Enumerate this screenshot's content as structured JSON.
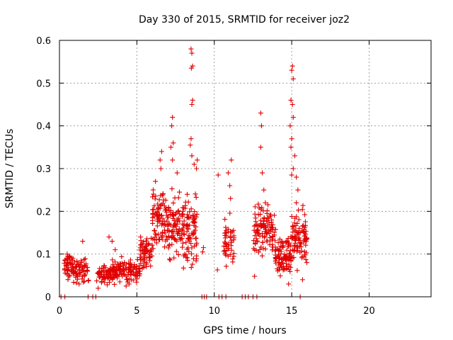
{
  "chart_data": {
    "type": "scatter",
    "title": "Day 330 of 2015, SRMTID for receiver joz2",
    "xlabel": "GPS time / hours",
    "ylabel": "SRMTID / TECUs",
    "xlim": [
      0,
      24
    ],
    "ylim": [
      0,
      0.6
    ],
    "xticks": [
      0,
      5,
      10,
      15,
      20
    ],
    "yticks": [
      0,
      0.1,
      0.2,
      0.3,
      0.4,
      0.5,
      0.6
    ],
    "xtick_labels": [
      "0",
      "5",
      "10",
      "15",
      "20"
    ],
    "ytick_labels": [
      "0",
      "0.1",
      "0.2",
      "0.3",
      "0.4",
      "0.5",
      "0.6"
    ],
    "grid": true,
    "marker": "+",
    "series": [
      {
        "name": "SRMTID",
        "color": "#e00000",
        "clusters": [
          {
            "x_start": 0.3,
            "x_end": 0.9,
            "y_center": 0.07,
            "y_spread": 0.025,
            "count": 45
          },
          {
            "x_start": 0.9,
            "x_end": 1.9,
            "y_center": 0.065,
            "y_spread": 0.025,
            "count": 60
          },
          {
            "x_start": 2.4,
            "x_end": 3.3,
            "y_center": 0.05,
            "y_spread": 0.02,
            "count": 60
          },
          {
            "x_start": 3.3,
            "x_end": 4.6,
            "y_center": 0.06,
            "y_spread": 0.025,
            "count": 90
          },
          {
            "x_start": 4.6,
            "x_end": 5.2,
            "y_center": 0.06,
            "y_spread": 0.02,
            "count": 40
          },
          {
            "x_start": 5.2,
            "x_end": 6.0,
            "y_center": 0.1,
            "y_spread": 0.035,
            "count": 60
          },
          {
            "x_start": 6.0,
            "x_end": 7.0,
            "y_center": 0.18,
            "y_spread": 0.06,
            "count": 90
          },
          {
            "x_start": 7.0,
            "x_end": 8.0,
            "y_center": 0.17,
            "y_spread": 0.07,
            "count": 90
          },
          {
            "x_start": 8.0,
            "x_end": 8.9,
            "y_center": 0.15,
            "y_spread": 0.07,
            "count": 80
          },
          {
            "x_start": 10.6,
            "x_end": 11.3,
            "y_center": 0.13,
            "y_spread": 0.05,
            "count": 45
          },
          {
            "x_start": 12.5,
            "x_end": 13.9,
            "y_center": 0.16,
            "y_spread": 0.05,
            "count": 110
          },
          {
            "x_start": 13.9,
            "x_end": 15.0,
            "y_center": 0.1,
            "y_spread": 0.04,
            "count": 100
          },
          {
            "x_start": 15.0,
            "x_end": 16.0,
            "y_center": 0.14,
            "y_spread": 0.06,
            "count": 90
          }
        ],
        "points": [
          [
            8.5,
            0.58
          ],
          [
            8.55,
            0.57
          ],
          [
            8.6,
            0.54
          ],
          [
            8.52,
            0.535
          ],
          [
            8.6,
            0.46
          ],
          [
            8.55,
            0.45
          ],
          [
            8.5,
            0.37
          ],
          [
            8.45,
            0.355
          ],
          [
            8.55,
            0.33
          ],
          [
            8.7,
            0.31
          ],
          [
            8.9,
            0.32
          ],
          [
            8.85,
            0.3
          ],
          [
            7.3,
            0.42
          ],
          [
            7.25,
            0.4
          ],
          [
            7.35,
            0.36
          ],
          [
            7.2,
            0.35
          ],
          [
            7.3,
            0.32
          ],
          [
            6.6,
            0.34
          ],
          [
            6.5,
            0.32
          ],
          [
            6.55,
            0.3
          ],
          [
            6.2,
            0.27
          ],
          [
            7.6,
            0.29
          ],
          [
            15.05,
            0.54
          ],
          [
            15.0,
            0.53
          ],
          [
            15.1,
            0.51
          ],
          [
            14.95,
            0.46
          ],
          [
            15.05,
            0.45
          ],
          [
            15.1,
            0.42
          ],
          [
            14.9,
            0.4
          ],
          [
            15.0,
            0.37
          ],
          [
            14.95,
            0.35
          ],
          [
            15.2,
            0.33
          ],
          [
            15.1,
            0.3
          ],
          [
            15.0,
            0.285
          ],
          [
            15.3,
            0.28
          ],
          [
            15.4,
            0.25
          ],
          [
            15.3,
            0.22
          ],
          [
            13.0,
            0.43
          ],
          [
            13.05,
            0.4
          ],
          [
            13.0,
            0.35
          ],
          [
            13.1,
            0.29
          ],
          [
            13.2,
            0.25
          ],
          [
            13.3,
            0.22
          ],
          [
            10.25,
            0.285
          ],
          [
            10.9,
            0.29
          ],
          [
            11.1,
            0.32
          ],
          [
            11.0,
            0.26
          ],
          [
            11.05,
            0.23
          ],
          [
            9.3,
            0.115
          ],
          [
            9.25,
            0.105
          ],
          [
            10.2,
            0.063
          ],
          [
            12.6,
            0.048
          ],
          [
            3.2,
            0.14
          ],
          [
            3.4,
            0.13
          ],
          [
            3.6,
            0.11
          ],
          [
            1.5,
            0.13
          ],
          [
            0.5,
            0.1
          ],
          [
            2.5,
            0.02
          ],
          [
            3.9,
            0.035
          ],
          [
            4.5,
            0.03
          ],
          [
            14.8,
            0.03
          ],
          [
            15.7,
            0.04
          ]
        ]
      }
    ],
    "zero_markers_x": [
      0.1,
      0.35,
      1.85,
      2.15,
      2.35,
      9.2,
      9.35,
      9.5,
      10.3,
      10.5,
      10.75,
      11.8,
      12.0,
      12.2,
      12.5,
      12.75,
      15.55
    ]
  }
}
